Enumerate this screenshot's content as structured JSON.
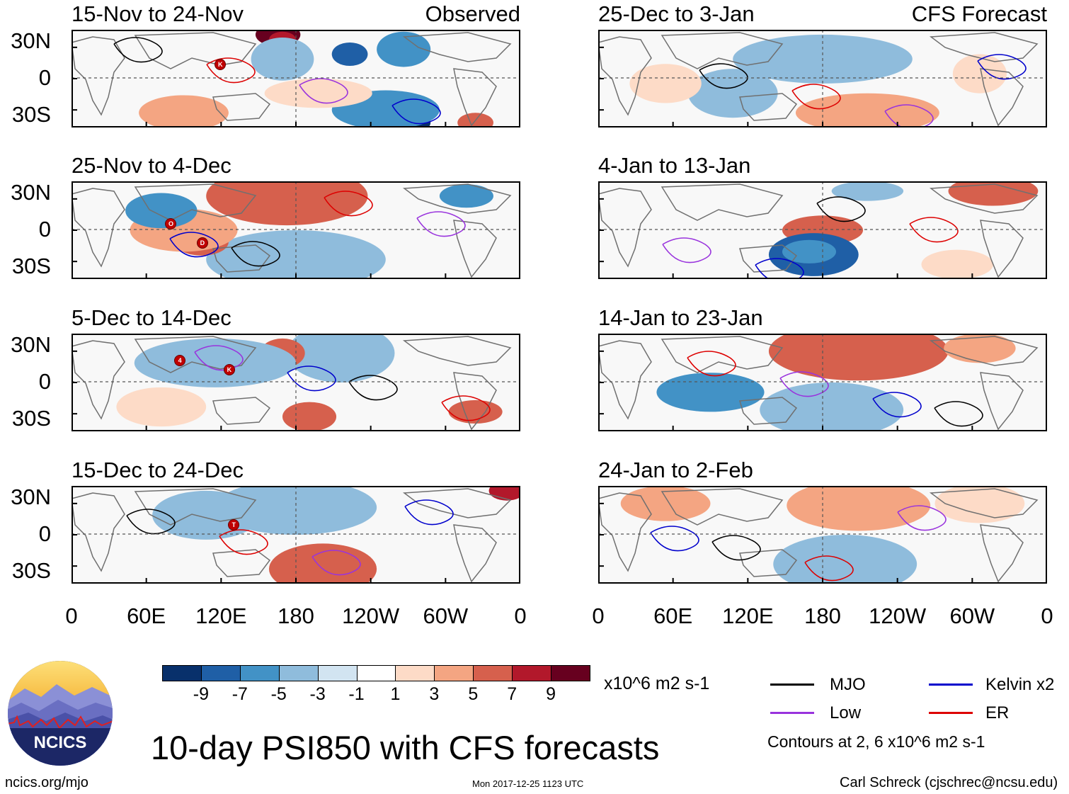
{
  "panels": [
    {
      "title": "15-Nov to 24-Nov",
      "tag": "Observed"
    },
    {
      "title": "25-Dec to 3-Jan",
      "tag": "CFS Forecast"
    },
    {
      "title": "25-Nov to 4-Dec",
      "tag": ""
    },
    {
      "title": "4-Jan to 13-Jan",
      "tag": ""
    },
    {
      "title": "5-Dec to 14-Dec",
      "tag": ""
    },
    {
      "title": "14-Jan to 23-Jan",
      "tag": ""
    },
    {
      "title": "15-Dec to 24-Dec",
      "tag": ""
    },
    {
      "title": "24-Jan to 2-Feb",
      "tag": ""
    }
  ],
  "lat_labels": [
    "30N",
    "0",
    "30S"
  ],
  "lon_labels": [
    "0",
    "60E",
    "120E",
    "180",
    "120W",
    "60W",
    "0"
  ],
  "storms": [
    {
      "panel": 0,
      "label": "K"
    },
    {
      "panel": 2,
      "label": "O"
    },
    {
      "panel": 2,
      "label": "D"
    },
    {
      "panel": 4,
      "label": "4"
    },
    {
      "panel": 4,
      "label": "K"
    },
    {
      "panel": 6,
      "label": "T"
    }
  ],
  "colorbar": {
    "ticks": [
      "-9",
      "-7",
      "-5",
      "-3",
      "-1",
      "1",
      "3",
      "5",
      "7",
      "9"
    ],
    "colors": [
      "#08306b",
      "#1f5fa6",
      "#4292c6",
      "#8fbcdc",
      "#d2e4f1",
      "#ffffff",
      "#fddbc7",
      "#f4a582",
      "#d6604d",
      "#b2182b",
      "#67001f"
    ],
    "units": "x10^6 m2 s-1"
  },
  "legend": [
    {
      "label": "MJO",
      "color": "#000000"
    },
    {
      "label": "Kelvin x2",
      "color": "#0000cc"
    },
    {
      "label": "Low",
      "color": "#9933dd"
    },
    {
      "label": "ER",
      "color": "#dd0000"
    }
  ],
  "contour_note": "Contours at 2, 6 x10^6 m2 s-1",
  "logo_text": "NCICS",
  "main_title": "10-day PSI850 with CFS forecasts",
  "footer": {
    "url": "ncics.org/mjo",
    "timestamp": "Mon 2017-12-25 1123 UTC",
    "credit": "Carl Schreck (cjschrec@ncsu.edu)"
  }
}
